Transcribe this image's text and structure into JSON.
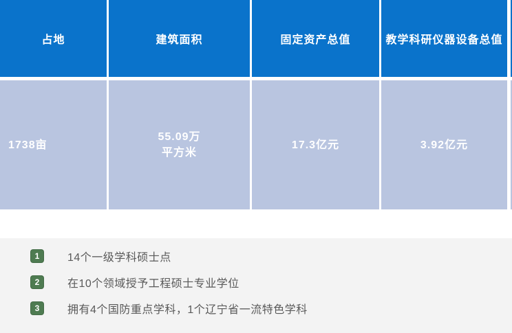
{
  "table": {
    "columns": [
      {
        "header": "占地",
        "value_lines": [
          "1738亩"
        ]
      },
      {
        "header": "建筑面积",
        "value_lines": [
          "55.09万",
          "平方米"
        ]
      },
      {
        "header": "固定资产总值",
        "value_lines": [
          "17.3亿元"
        ]
      },
      {
        "header": "教学科研仪器设备总值",
        "value_lines": [
          "3.92亿元"
        ]
      }
    ]
  },
  "highlights": [
    {
      "num": "1",
      "text": "14个一级学科硕士点"
    },
    {
      "num": "2",
      "text": "在10个领域授予工程硕士专业学位"
    },
    {
      "num": "3",
      "text": "拥有4个国防重点学科，1个辽宁省一流特色学科"
    }
  ],
  "colors": {
    "header-blue": "#0a73cb",
    "value-bg": "#b9c5e0",
    "panel-gray": "#f3f3f3",
    "badge-green": "#4e7b51",
    "note-text": "#595959",
    "cell-text": "#ffffff"
  },
  "chart_data": {
    "type": "table",
    "title": "",
    "columns": [
      "占地",
      "建筑面积",
      "固定资产总值",
      "教学科研仪器设备总值"
    ],
    "rows": [
      [
        "1738亩",
        "55.09万平方米",
        "17.3亿元",
        "3.92亿元"
      ]
    ],
    "notes": [
      "14个一级学科硕士点",
      "在10个领域授予工程硕士专业学位",
      "拥有4个国防重点学科，1个辽宁省一流特色学科"
    ],
    "layout_hints": {
      "header_fill": "#0a73cb",
      "row_fill": "#b9c5e0",
      "grid": "white dividers between columns"
    }
  }
}
